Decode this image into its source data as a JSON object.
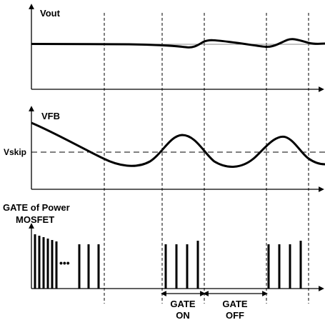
{
  "panels": {
    "vout": {
      "label": "Vout"
    },
    "vfb": {
      "label": "VFB",
      "threshold_label": "Vskip"
    },
    "gate": {
      "label_line1": "GATE of Power",
      "label_line2": "MOSFET",
      "ellipsis": "•••"
    }
  },
  "annotations": {
    "gate_on_line1": "GATE",
    "gate_on_line2": "ON",
    "gate_off_line1": "GATE",
    "gate_off_line2": "OFF"
  }
}
